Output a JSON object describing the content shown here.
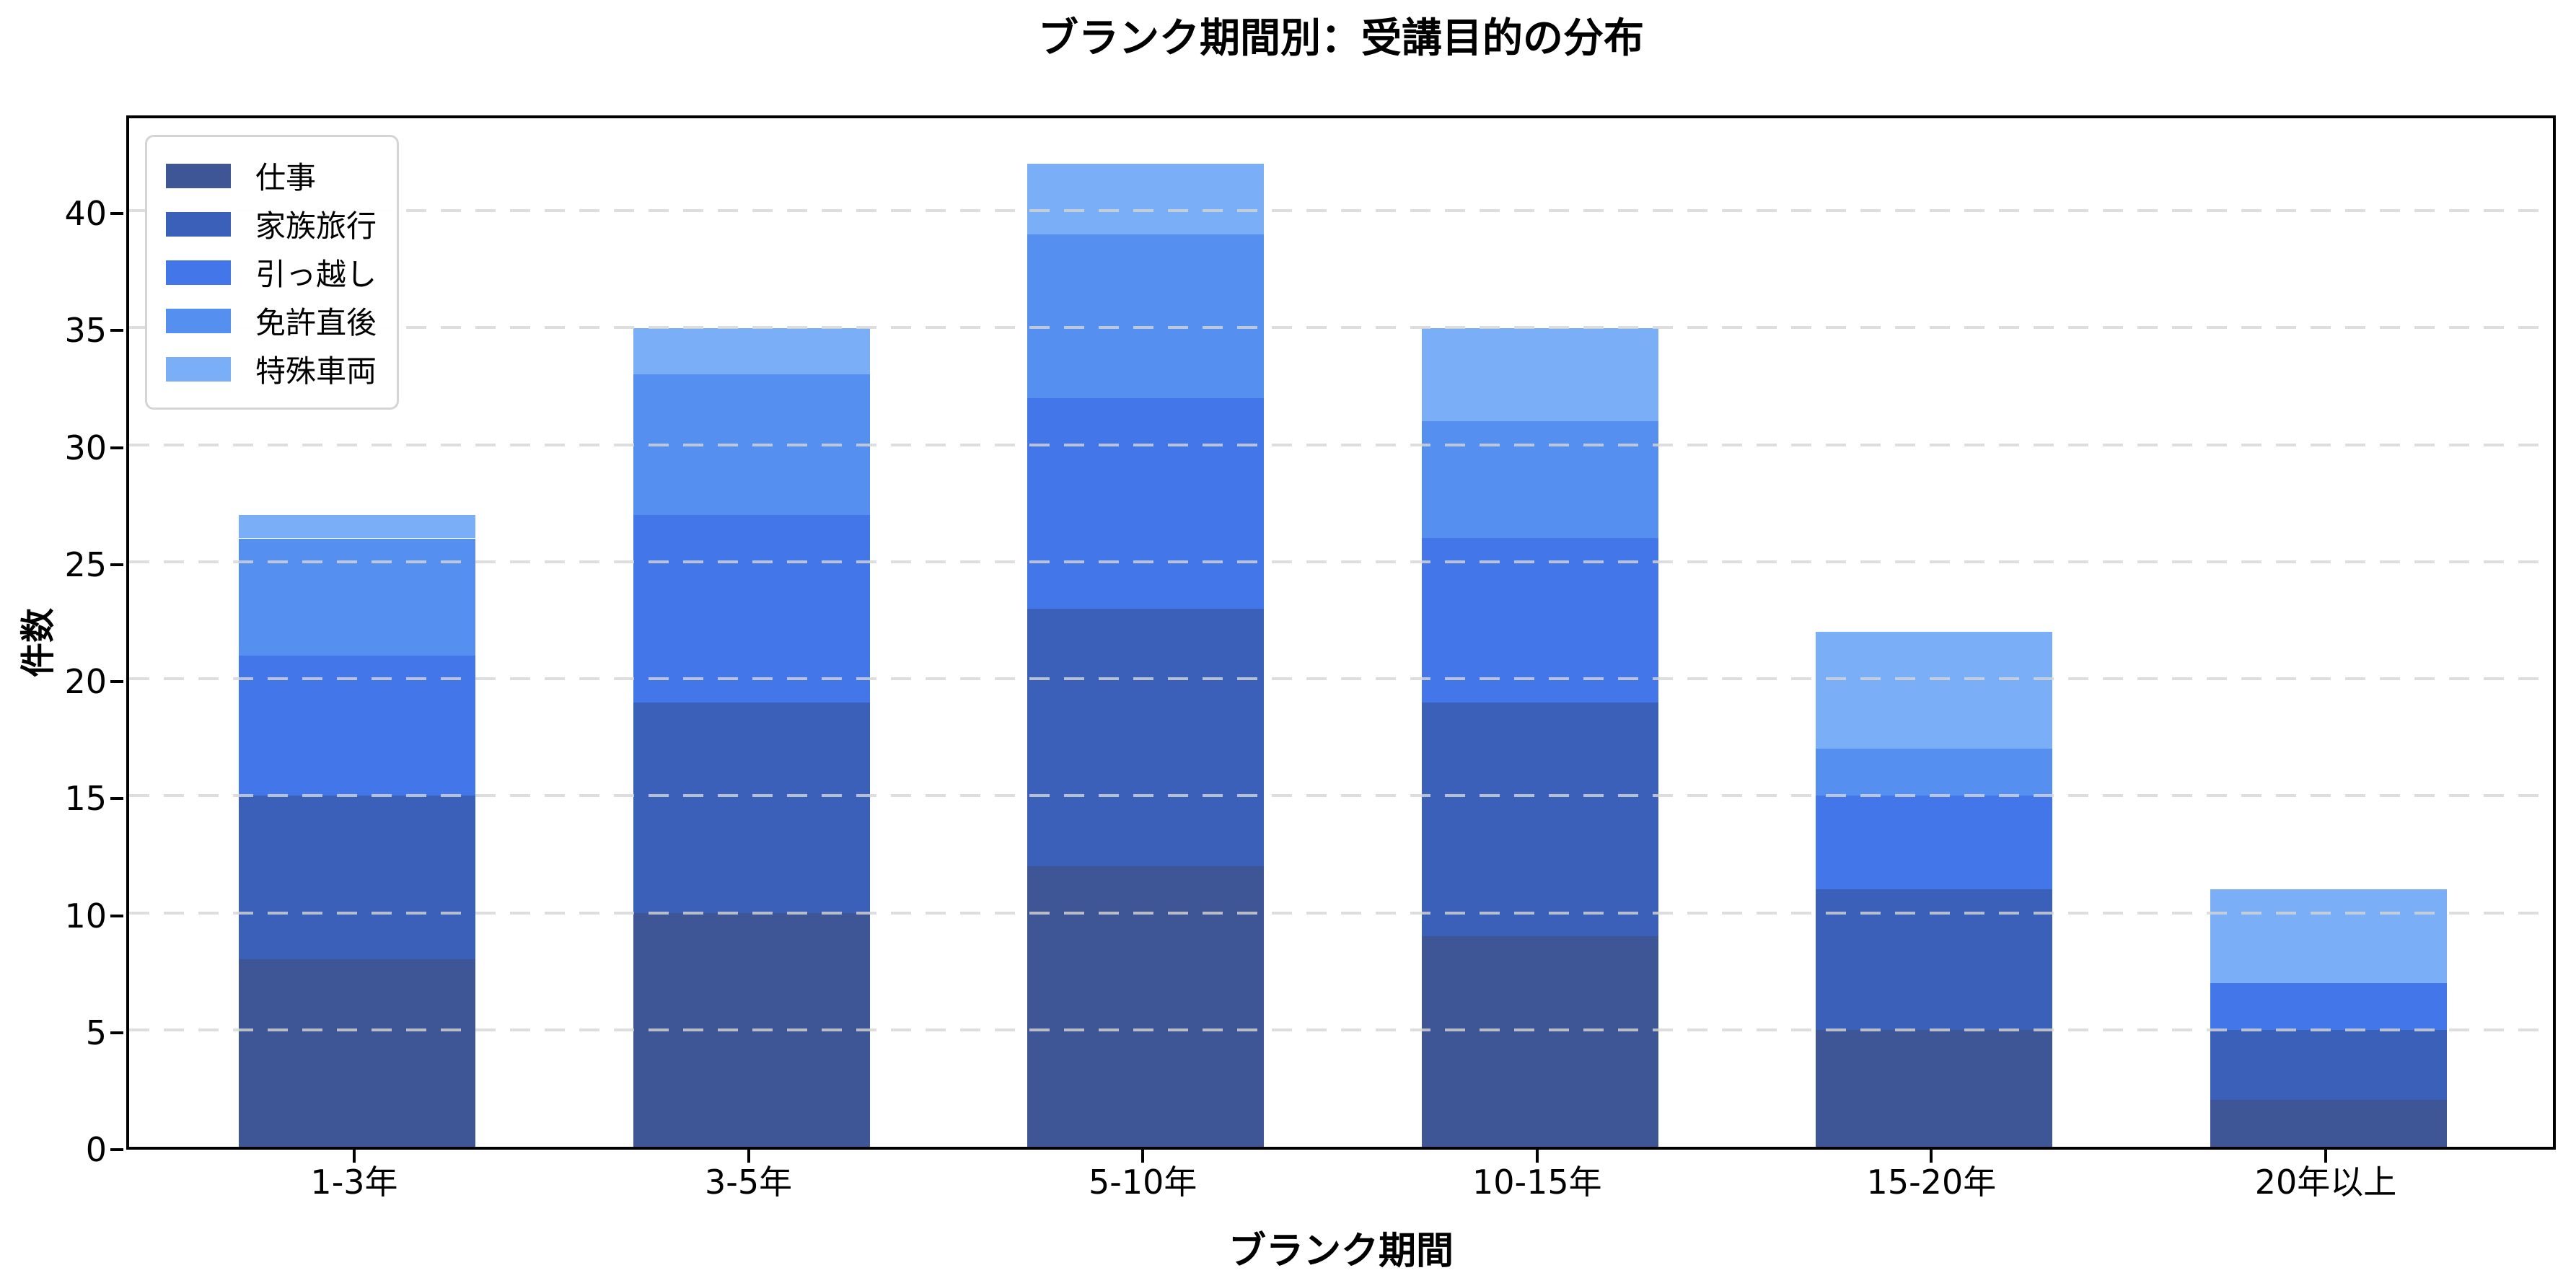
{
  "title": "ブランク期間別：受講目的の分布",
  "axes": {
    "xlabel": "ブランク期間",
    "ylabel": "件数"
  },
  "chart_data": {
    "type": "bar",
    "stacked": true,
    "title": "ブランク期間別：受講目的の分布",
    "xlabel": "ブランク期間",
    "ylabel": "件数",
    "categories": [
      "1-3年",
      "3-5年",
      "5-10年",
      "10-15年",
      "15-20年",
      "20年以上"
    ],
    "series": [
      {
        "name": "仕事",
        "color": "#3E5696",
        "values": [
          8,
          10,
          12,
          9,
          5,
          2
        ]
      },
      {
        "name": "家族旅行",
        "color": "#3A60BA",
        "values": [
          7,
          9,
          11,
          10,
          6,
          3
        ]
      },
      {
        "name": "引っ越し",
        "color": "#4377E9",
        "values": [
          6,
          8,
          9,
          7,
          4,
          2
        ]
      },
      {
        "name": "免許直後",
        "color": "#5590F0",
        "values": [
          5,
          6,
          7,
          5,
          2,
          0
        ]
      },
      {
        "name": "特殊車両",
        "color": "#7AAEF7",
        "values": [
          1,
          2,
          3,
          4,
          5,
          4
        ]
      }
    ],
    "totals": [
      27,
      35,
      42,
      35,
      22,
      11
    ],
    "yticks": [
      0,
      5,
      10,
      15,
      20,
      25,
      30,
      35,
      40
    ],
    "ylim": [
      0,
      44.2
    ],
    "grid": "y-dashed",
    "legend_position": "upper-left"
  }
}
